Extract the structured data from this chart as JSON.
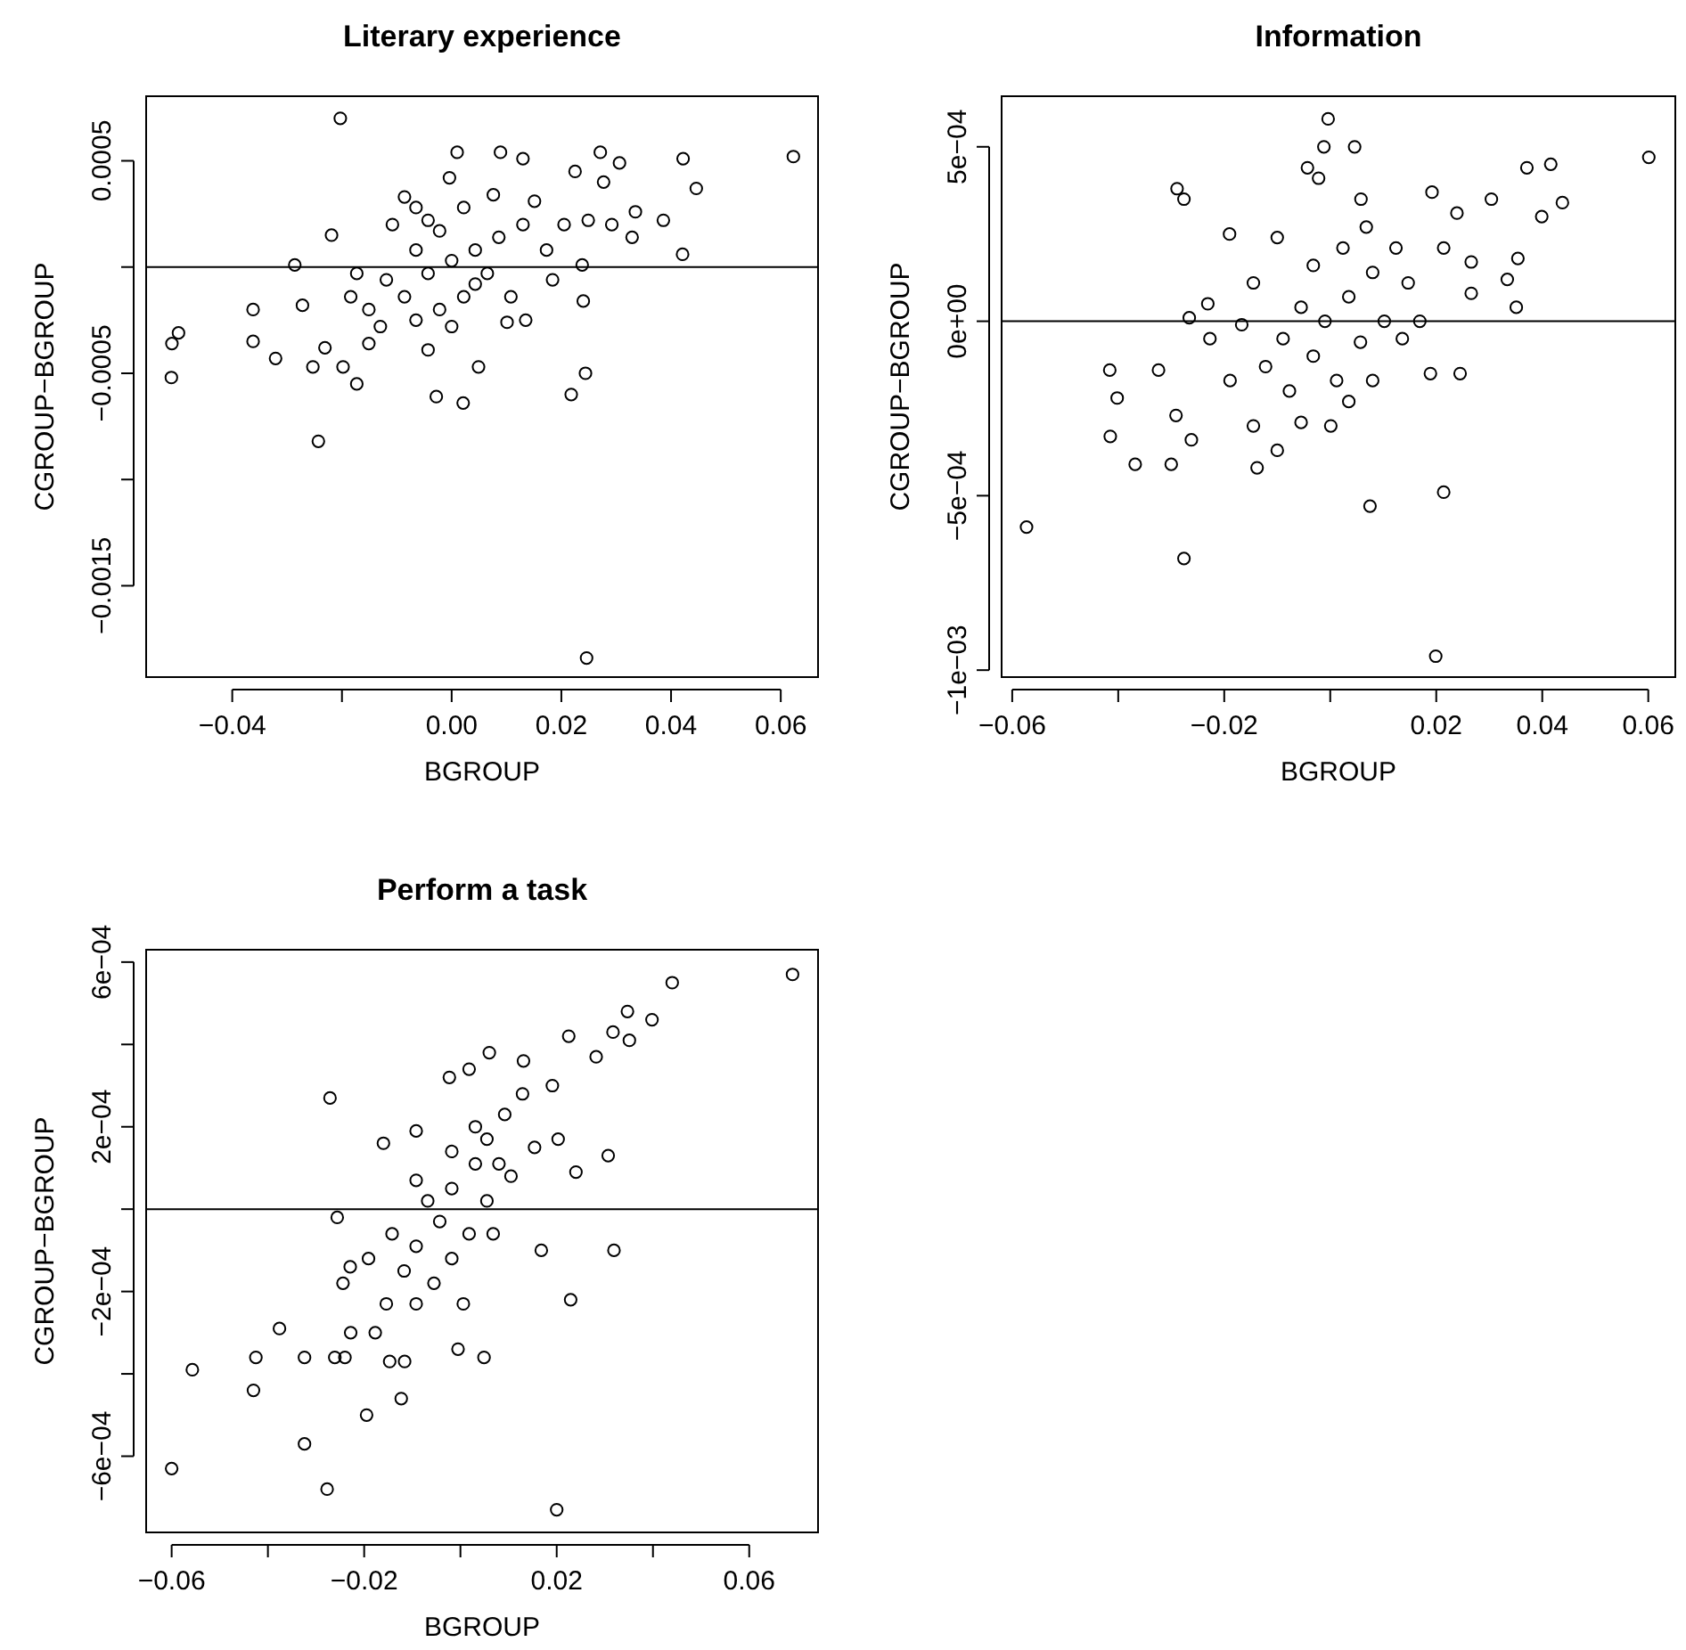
{
  "chart_data": [
    {
      "type": "scatter",
      "title": "Literary experience",
      "xlabel": "BGROUP",
      "ylabel": "CGROUP−BGROUP",
      "marker": "circle",
      "grid": false,
      "xlim": [
        -0.0557,
        0.0668
      ],
      "ylim": [
        -0.00193,
        0.000804
      ],
      "xticks": [
        {
          "value": -0.04,
          "label": "−0.04"
        },
        {
          "value": -0.02,
          "label": null
        },
        {
          "value": 0,
          "label": "0.00"
        },
        {
          "value": 0.02,
          "label": "0.02"
        },
        {
          "value": 0.04,
          "label": "0.04"
        },
        {
          "value": 0.06,
          "label": "0.06"
        }
      ],
      "yticks": [
        {
          "value": 0.0005,
          "label": "0.0005"
        },
        {
          "value": 0,
          "label": null
        },
        {
          "value": -0.0005,
          "label": "−0.0005"
        },
        {
          "value": -0.001,
          "label": null
        },
        {
          "value": -0.0015,
          "label": "−0.0015"
        }
      ],
      "ref_lines": [
        {
          "axis": "y",
          "value": 0,
          "color": "#000000"
        }
      ],
      "series": [
        {
          "color": "#000000",
          "x": [
            -0.0203,
            -0.0511,
            -0.051,
            -0.0498,
            -0.0362,
            -0.0362,
            -0.0321,
            -0.0243,
            -0.0286,
            -0.0272,
            -0.0253,
            -0.0219,
            -0.0028,
            0.0021,
            0.0246,
            0.0218,
            0.0244,
            0.024,
            0.0623,
            0.0422,
            0.0446,
            0.0421,
            0.0386,
            0.0335,
            0.0329,
            0.0306,
            0.0271,
            0.0277,
            0.0225,
            0.001,
            0.0089,
            0.013,
            -0.0004,
            -0.0173,
            -0.0198,
            0.0049,
            0.0101,
            -0.0231,
            -0.0086,
            0.0184,
            0.0238,
            0.0292,
            0.0135,
            -0.0043,
            -0.0065,
            -0.0119,
            -0.0151,
            -0.0086,
            -0.0043,
            0,
            0.0043,
            0.0086,
            0.013,
            0.0065,
            0.0022,
            -0.0022,
            -0.0065,
            -0.0108,
            -0.0043,
            0.0022,
            0.0076,
            0.0151,
            0.0173,
            0.0108,
            -0.013,
            -0.0173,
            -0.0151,
            0,
            -0.0065,
            -0.0022,
            0.0043,
            0.0205,
            0.0249,
            -0.0184
          ],
          "values": [
            0.0007,
            -0.00052,
            -0.00036,
            -0.00031,
            -0.0002,
            -0.00035,
            -0.00043,
            -0.00082,
            1e-05,
            -0.00018,
            -0.00047,
            0.00015,
            -0.00061,
            -0.00064,
            -0.00184,
            -0.0006,
            -0.0005,
            -0.00016,
            0.00052,
            0.00051,
            0.00037,
            6e-05,
            0.00022,
            0.00026,
            0.00014,
            0.00049,
            0.00054,
            0.0004,
            0.00045,
            0.00054,
            0.00054,
            0.00051,
            0.00042,
            -0.00055,
            -0.00047,
            -0.00047,
            -0.00026,
            -0.00038,
            0.00033,
            -6e-05,
            1e-05,
            0.0002,
            -0.00025,
            -0.00039,
            8e-05,
            -6e-05,
            -0.0002,
            -0.00014,
            -3e-05,
            3e-05,
            8e-05,
            0.00014,
            0.0002,
            -3e-05,
            -0.00014,
            -0.0002,
            -0.00025,
            0.0002,
            0.00022,
            0.00028,
            0.00034,
            0.00031,
            8e-05,
            -0.00014,
            -0.00028,
            -3e-05,
            -0.00036,
            -0.00028,
            0.00028,
            0.00017,
            -8e-05,
            0.0002,
            0.00022,
            -0.00014
          ]
        }
      ]
    },
    {
      "type": "scatter",
      "title": "Information",
      "xlabel": "BGROUP",
      "ylabel": "CGROUP−BGROUP",
      "marker": "circle",
      "grid": false,
      "xlim": [
        -0.062,
        0.0651
      ],
      "ylim": [
        -0.00102,
        0.000645
      ],
      "xticks": [
        {
          "value": -0.06,
          "label": "−0.06"
        },
        {
          "value": -0.04,
          "label": null
        },
        {
          "value": -0.02,
          "label": "−0.02"
        },
        {
          "value": 0,
          "label": null
        },
        {
          "value": 0.02,
          "label": "0.02"
        },
        {
          "value": 0.04,
          "label": "0.04"
        },
        {
          "value": 0.06,
          "label": "0.06"
        }
      ],
      "yticks": [
        {
          "value": 0.0005,
          "label": "5e−04"
        },
        {
          "value": 0,
          "label": "0e+00"
        },
        {
          "value": -0.0005,
          "label": "−5e−04"
        },
        {
          "value": -0.001,
          "label": "−1e−03"
        }
      ],
      "ref_lines": [
        {
          "axis": "y",
          "value": 0,
          "color": "#000000"
        }
      ],
      "series": [
        {
          "color": "#000000",
          "x": [
            -0.0573,
            -0.0276,
            0.0199,
            0.0214,
            0.0075,
            0.0601,
            0.0416,
            0.0371,
            0.0438,
            0.0399,
            0.0304,
            0.0354,
            0.0334,
            0.0351,
            0.0266,
            0.0245,
            0.0192,
            -0.0004,
            -0.0012,
            0.0046,
            -0.0043,
            -0.0022,
            -0.0289,
            -0.0276,
            -0.0416,
            -0.0402,
            -0.0415,
            -0.0368,
            -0.03,
            -0.0262,
            -0.0138,
            -0.0324,
            -0.0266,
            -0.0231,
            -0.019,
            -0.0291,
            -0.0227,
            0.0189,
            0.0239,
            0.0266,
            0.0058,
            -0.0089,
            -0.0055,
            -0.001,
            0.0035,
            0.008,
            0.0124,
            0.0147,
            -0.0122,
            -0.0077,
            -0.0032,
            0.0012,
            0.0057,
            0.0102,
            -0.0145,
            -0.01,
            -0.0032,
            0.0024,
            0.0068,
            0.0169,
            -0.0167,
            -0.0145,
            -0.0055,
            0.0035,
            0.008,
            -0.0189,
            -0.01,
            0.0001,
            0.0136,
            0.0214
          ],
          "values": [
            -0.00059,
            -0.00068,
            -0.00096,
            -0.00049,
            -0.00053,
            0.00047,
            0.00045,
            0.00044,
            0.00034,
            0.0003,
            0.00035,
            0.00018,
            0.00012,
            4e-05,
            8e-05,
            -0.00015,
            0.00037,
            0.00058,
            0.0005,
            0.0005,
            0.00044,
            0.00041,
            0.00038,
            0.00035,
            -0.00014,
            -0.00022,
            -0.00033,
            -0.00041,
            -0.00041,
            -0.00034,
            -0.00042,
            -0.00014,
            1e-05,
            5e-05,
            0.00025,
            -0.00027,
            -5e-05,
            -0.00015,
            0.00031,
            0.00017,
            0.00035,
            -5e-05,
            4e-05,
            0.0,
            7e-05,
            0.00014,
            0.00021,
            0.00011,
            -0.00013,
            -0.0002,
            -0.0001,
            -0.00017,
            -6e-05,
            0.0,
            0.00011,
            0.00024,
            0.00016,
            0.00021,
            0.00027,
            0.0,
            -1e-05,
            -0.0003,
            -0.00029,
            -0.00023,
            -0.00017,
            -0.00017,
            -0.00037,
            -0.0003,
            -5e-05,
            0.00021
          ]
        }
      ]
    },
    {
      "type": "scatter",
      "title": "Perform a task",
      "xlabel": "BGROUP",
      "ylabel": "CGROUP−BGROUP",
      "marker": "circle",
      "grid": false,
      "xlim": [
        -0.0653,
        0.0743
      ],
      "ylim": [
        -0.000785,
        0.00063
      ],
      "xticks": [
        {
          "value": -0.06,
          "label": "−0.06"
        },
        {
          "value": -0.04,
          "label": null
        },
        {
          "value": -0.02,
          "label": "−0.02"
        },
        {
          "value": 0,
          "label": null
        },
        {
          "value": 0.02,
          "label": "0.02"
        },
        {
          "value": 0.04,
          "label": null
        },
        {
          "value": 0.06,
          "label": "0.06"
        }
      ],
      "yticks": [
        {
          "value": 0.0006,
          "label": "6e−04"
        },
        {
          "value": 0.0004,
          "label": null
        },
        {
          "value": 0.0002,
          "label": "2e−04"
        },
        {
          "value": 0,
          "label": null
        },
        {
          "value": -0.0002,
          "label": "−2e−04"
        },
        {
          "value": -0.0004,
          "label": null
        },
        {
          "value": -0.0006,
          "label": "−6e−04"
        }
      ],
      "ref_lines": [
        {
          "axis": "y",
          "value": 0,
          "color": "#000000"
        }
      ],
      "series": [
        {
          "color": "#000000",
          "x": [
            0.069,
            0.044,
            0.0347,
            0.0398,
            0.0317,
            0.0351,
            0.0225,
            0.0282,
            0.006,
            0.0131,
            0.0018,
            -0.0023,
            -0.0271,
            -0.0092,
            -0.016,
            -0.06,
            -0.0557,
            -0.0425,
            -0.043,
            -0.0376,
            -0.0324,
            -0.0324,
            -0.0277,
            -0.0261,
            -0.024,
            -0.0195,
            -0.0123,
            0.02,
            0.0229,
            0.0319,
            0.0307,
            0.024,
            0.0168,
            -0.0256,
            -0.0229,
            -0.0244,
            -0.0228,
            -0.0147,
            -0.0116,
            0.0049,
            -0.0005,
            -0.0177,
            -0.0068,
            -0.0043,
            -0.0018,
            0.0031,
            0.0055,
            0.0092,
            0.0129,
            0.0154,
            -0.0092,
            -0.0117,
            -0.0055,
            -0.0018,
            0.0018,
            0.0068,
            -0.0142,
            -0.0092,
            -0.0154,
            0.0006,
            0.0055,
            0.0105,
            0.0203,
            0.0191,
            -0.0092,
            -0.0191,
            0.0031,
            0.008,
            -0.0018
          ],
          "values": [
            0.00057,
            0.00055,
            0.00048,
            0.00046,
            0.00043,
            0.00041,
            0.00042,
            0.00037,
            0.00038,
            0.00036,
            0.00034,
            0.00032,
            0.00027,
            0.00019,
            0.00016,
            -0.00063,
            -0.00039,
            -0.00036,
            -0.00044,
            -0.00029,
            -0.00036,
            -0.00057,
            -0.00068,
            -0.00036,
            -0.00036,
            -0.0005,
            -0.00046,
            -0.00073,
            -0.00022,
            -0.0001,
            0.00013,
            9e-05,
            -0.0001,
            -2e-05,
            -0.00014,
            -0.00018,
            -0.0003,
            -0.00037,
            -0.00037,
            -0.00036,
            -0.00034,
            -0.0003,
            2e-05,
            -3e-05,
            5e-05,
            0.00011,
            0.00017,
            0.00023,
            0.00028,
            0.00015,
            -9e-05,
            -0.00015,
            -0.00018,
            -0.00012,
            -6e-05,
            -6e-05,
            -6e-05,
            -0.00023,
            -0.00023,
            -0.00023,
            2e-05,
            8e-05,
            0.00017,
            0.0003,
            7e-05,
            -0.00012,
            0.0002,
            0.00011,
            0.00014
          ]
        }
      ]
    }
  ]
}
